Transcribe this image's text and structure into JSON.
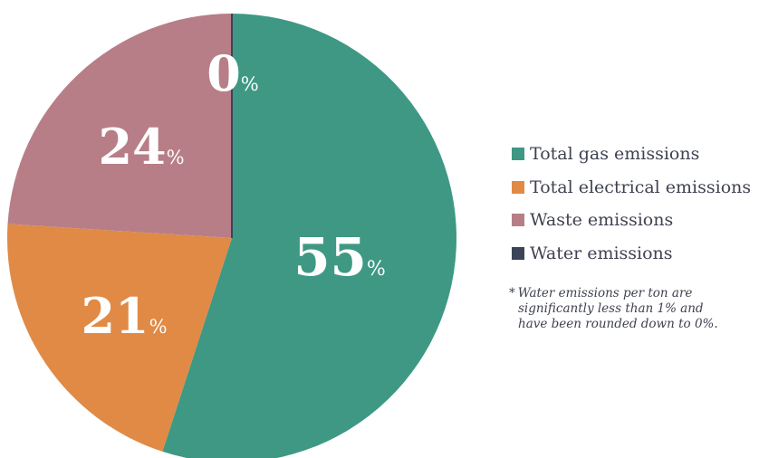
{
  "chart_data": {
    "type": "pie",
    "slices": [
      {
        "name": "Total gas emissions",
        "value": 55,
        "label_num": "55",
        "label_pct": "%",
        "color": "#3e9884"
      },
      {
        "name": "Total electrical emissions",
        "value": 21,
        "label_num": "21",
        "label_pct": "%",
        "color": "#e08a46"
      },
      {
        "name": "Waste emissions",
        "value": 24,
        "label_num": "24",
        "label_pct": "%",
        "color": "#b77e88"
      },
      {
        "name": "Water emissions",
        "value": 0,
        "label_num": "0",
        "label_pct": "%",
        "color": "#3b4557"
      }
    ],
    "legend_placement": "right",
    "footnote": {
      "mark": "*",
      "lines": [
        "Water emissions per ton are",
        "significantly less than 1% and",
        "have been rounded down to 0%."
      ]
    }
  }
}
